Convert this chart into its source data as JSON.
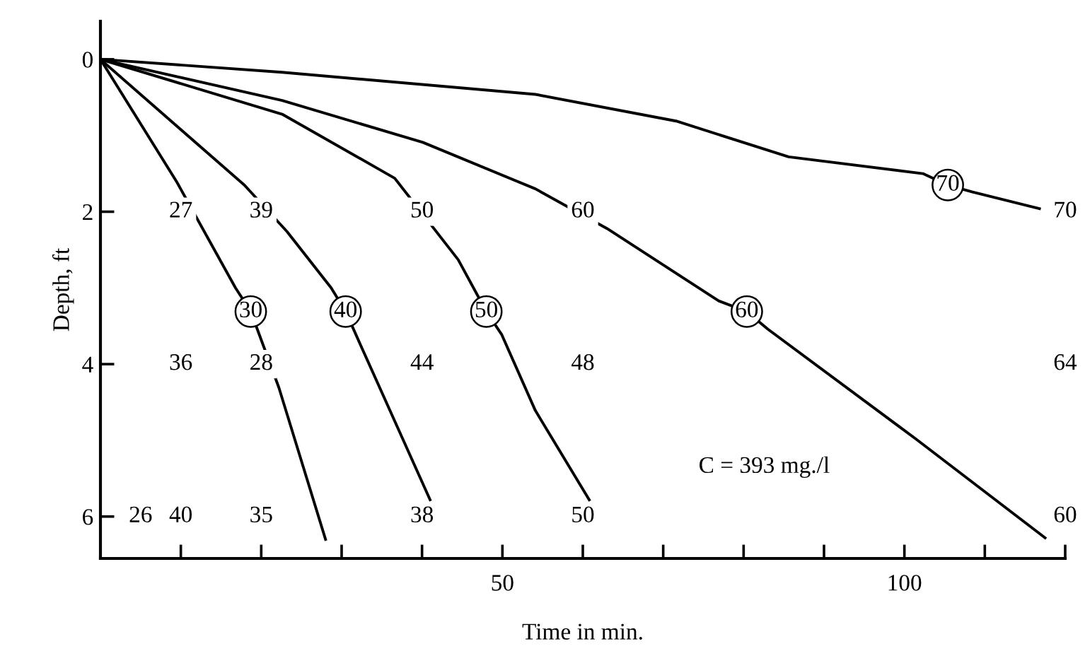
{
  "chart_data": {
    "type": "line",
    "xlabel": "Time in min.",
    "ylabel": "Depth, ft",
    "xlim": [
      0,
      120
    ],
    "ylim": [
      6.55,
      -0.5
    ],
    "xticks": [
      {
        "value": 10,
        "label": null
      },
      {
        "value": 20,
        "label": null
      },
      {
        "value": 30,
        "label": null
      },
      {
        "value": 40,
        "label": null
      },
      50,
      {
        "value": 60,
        "label": null
      },
      {
        "value": 70,
        "label": null
      },
      {
        "value": 80,
        "label": null
      },
      {
        "value": 90,
        "label": null
      },
      100,
      {
        "value": 110,
        "label": null
      },
      {
        "value": 120,
        "label": null
      }
    ],
    "yticks": [
      0,
      2,
      4,
      6
    ],
    "grid": false,
    "marker": "none",
    "line_style": "solid",
    "series": [
      {
        "color": "#000000",
        "x": [
          0,
          9.5,
          16.8,
          18.7,
          22.2,
          28.0
        ],
        "values": [
          0,
          1.61,
          3.0,
          3.31,
          4.31,
          6.3
        ]
      },
      {
        "color": "#000000",
        "x": [
          0,
          17.9,
          23.2,
          28.7,
          30.5,
          32.4,
          41.0
        ],
        "values": [
          0,
          1.65,
          2.26,
          3.0,
          3.31,
          3.76,
          5.78
        ]
      },
      {
        "color": "#000000",
        "x": [
          0,
          22.6,
          36.6,
          44.5,
          48.0,
          49.9,
          54.1,
          60.8
        ],
        "values": [
          0,
          0.72,
          1.56,
          2.63,
          3.31,
          3.61,
          4.61,
          5.78
        ]
      },
      {
        "color": "#000000",
        "x": [
          0,
          22.6,
          40.1,
          54.1,
          63.0,
          76.9,
          80.4,
          83.0,
          101.4,
          117.5
        ],
        "values": [
          0,
          0.54,
          1.09,
          1.7,
          2.22,
          3.17,
          3.31,
          3.54,
          4.98,
          6.28
        ]
      },
      {
        "color": "#000000",
        "x": [
          0,
          22.6,
          54.1,
          71.6,
          85.6,
          102.3,
          105.4,
          108.4,
          116.8
        ],
        "values": [
          0,
          0.17,
          0.46,
          0.81,
          1.28,
          1.5,
          1.65,
          1.74,
          1.96
        ]
      }
    ],
    "annotations": [
      {
        "text": "30",
        "x": 18.7,
        "y": 3.31
      },
      {
        "text": "40",
        "x": 30.5,
        "y": 3.31
      },
      {
        "text": "50",
        "x": 48.0,
        "y": 3.31
      },
      {
        "text": "60",
        "x": 80.4,
        "y": 3.31
      },
      {
        "text": "70",
        "x": 105.4,
        "y": 1.65
      },
      {
        "text": "27",
        "x": 10,
        "y": 2
      },
      {
        "text": "39",
        "x": 20,
        "y": 2
      },
      {
        "text": "50",
        "x": 40,
        "y": 2
      },
      {
        "text": "60",
        "x": 60,
        "y": 2
      },
      {
        "text": "70",
        "x": 120,
        "y": 2
      },
      {
        "text": "36",
        "x": 10,
        "y": 4
      },
      {
        "text": "28",
        "x": 20,
        "y": 4
      },
      {
        "text": "44",
        "x": 40,
        "y": 4
      },
      {
        "text": "48",
        "x": 60,
        "y": 4
      },
      {
        "text": "64",
        "x": 120,
        "y": 4
      },
      {
        "text": "26",
        "x": 5,
        "y": 6
      },
      {
        "text": "40",
        "x": 10,
        "y": 6
      },
      {
        "text": "35",
        "x": 20,
        "y": 6
      },
      {
        "text": "38",
        "x": 40,
        "y": 6
      },
      {
        "text": "50",
        "x": 60,
        "y": 6
      },
      {
        "text": "60",
        "x": 120,
        "y": 6
      },
      "C = 393 mg./l"
    ]
  }
}
